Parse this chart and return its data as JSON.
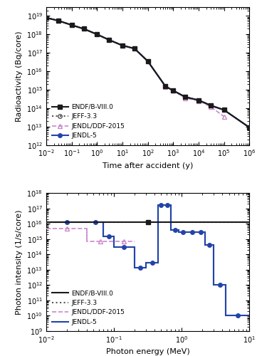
{
  "top": {
    "title": "",
    "xlabel": "Time after accident (y)",
    "ylabel": "Radioactivity (Bq/core)",
    "xlim": [
      0.01,
      1000000.0
    ],
    "ylim": [
      1000000000000.0,
      3e+19
    ],
    "series": {
      "ENDF/B-VIII.0": {
        "x": [
          0.01,
          0.03,
          0.1,
          0.3,
          1.0,
          3.0,
          10.0,
          30.0,
          100.0,
          500.0,
          1000.0,
          3000.0,
          10000.0,
          30000.0,
          100000.0,
          1000000.0
        ],
        "y": [
          8e+18,
          5.5e+18,
          3.2e+18,
          2e+18,
          1e+18,
          5e+17,
          2.5e+17,
          1.7e+17,
          3.5e+16,
          1500000000000000.0,
          900000000000000.0,
          400000000000000.0,
          270000000000000.0,
          140000000000000.0,
          80000000000000.0,
          9000000000000.0
        ],
        "color": "#1a1a1a",
        "linestyle": "-",
        "marker": "s",
        "linewidth": 1.5,
        "markersize": 4
      },
      "JEFF-3.3": {
        "x": [
          0.01,
          0.03,
          0.1,
          0.3,
          1.0,
          3.0,
          10.0,
          30.0,
          100.0,
          500.0,
          1000.0,
          3000.0,
          10000.0,
          30000.0,
          100000.0,
          1000000.0
        ],
        "y": [
          8e+18,
          5.5e+18,
          3.2e+18,
          2e+18,
          1e+18,
          5e+17,
          2.5e+17,
          1.7e+17,
          3.5e+16,
          1500000000000000.0,
          900000000000000.0,
          400000000000000.0,
          270000000000000.0,
          140000000000000.0,
          80000000000000.0,
          9000000000000.0
        ],
        "color": "#555555",
        "linestyle": ":",
        "marker": "o",
        "linewidth": 1.5,
        "markersize": 4,
        "markerfacecolor": "none"
      },
      "JENDL/DDF-2015": {
        "x": [
          500.0,
          1000.0,
          3000.0,
          10000.0,
          30000.0,
          100000.0
        ],
        "y": [
          1450000000000000.0,
          900000000000000.0,
          350000000000000.0,
          250000000000000.0,
          120000000000000.0,
          35000000000000.0
        ],
        "color": "#cc88cc",
        "linestyle": "--",
        "marker": "^",
        "linewidth": 1.2,
        "markersize": 4,
        "markerfacecolor": "none"
      },
      "JENDL-5": {
        "x": [
          0.01,
          0.03,
          0.1,
          0.3,
          1.0,
          3.0,
          10.0,
          30.0,
          100.0,
          500.0,
          1000.0,
          3000.0,
          10000.0,
          30000.0,
          100000.0,
          1000000.0
        ],
        "y": [
          8e+18,
          5.5e+18,
          3.2e+18,
          2e+18,
          1e+18,
          5e+17,
          2.5e+17,
          1.7e+17,
          3.5e+16,
          1500000000000000.0,
          900000000000000.0,
          400000000000000.0,
          270000000000000.0,
          140000000000000.0,
          80000000000000.0,
          9000000000000.0
        ],
        "color": "#2244aa",
        "linestyle": "-",
        "marker": "o",
        "linewidth": 1.5,
        "markersize": 4
      }
    }
  },
  "bottom": {
    "title": "",
    "xlabel": "Photon energy (MeV)",
    "ylabel": "Photon intensity (1/s/core)",
    "xlim": [
      0.01,
      10.0
    ],
    "ylim": [
      1000000000.0,
      1e+18
    ],
    "series": {
      "ENDF/B-VIII.0": {
        "x": [
          0.01
        ],
        "y": [
          1.3e+16
        ],
        "color": "#1a1a1a",
        "linestyle": "-",
        "marker": "s",
        "linewidth": 1.5,
        "markersize": 4
      },
      "JEFF-3.3": {
        "x": [
          0.01
        ],
        "y": [
          1.3e+16
        ],
        "color": "#555555",
        "linestyle": ":",
        "marker": "o",
        "linewidth": 1.5,
        "markersize": 4,
        "markerfacecolor": "none"
      },
      "JENDL/DDF-2015": {
        "x": [
          0.01,
          0.04,
          0.1,
          0.15
        ],
        "y": [
          5000000000000000.0,
          700000000000000.0,
          700000000000000.0,
          700000000000000.0
        ],
        "color": "#cc88cc",
        "linestyle": "--",
        "marker": "^",
        "linewidth": 1.2,
        "markersize": 4,
        "markerfacecolor": "none"
      },
      "JENDL-5": {
        "x": [
          0.01,
          0.04,
          0.07,
          0.12,
          0.2,
          0.3,
          0.45,
          0.55,
          0.7,
          0.9,
          1.2,
          1.7,
          2.2,
          3.0,
          4.5,
          6.5
        ],
        "y": [
          1.3e+16,
          1.3e+16,
          1500000000000000.0,
          1500000000000000.0,
          300000000000000.0,
          13000000000000.0,
          30000000000000.0,
          1.7e+17,
          1.7e+17,
          4000000000000000.0,
          3000000000000000.0,
          3000000000000000.0,
          3000000000000000.0,
          400000000000000.0,
          1000000000000.0,
          10000000000.0
        ],
        "color": "#2244aa",
        "linestyle": "-",
        "marker": "o",
        "linewidth": 1.5,
        "markersize": 4
      }
    }
  }
}
